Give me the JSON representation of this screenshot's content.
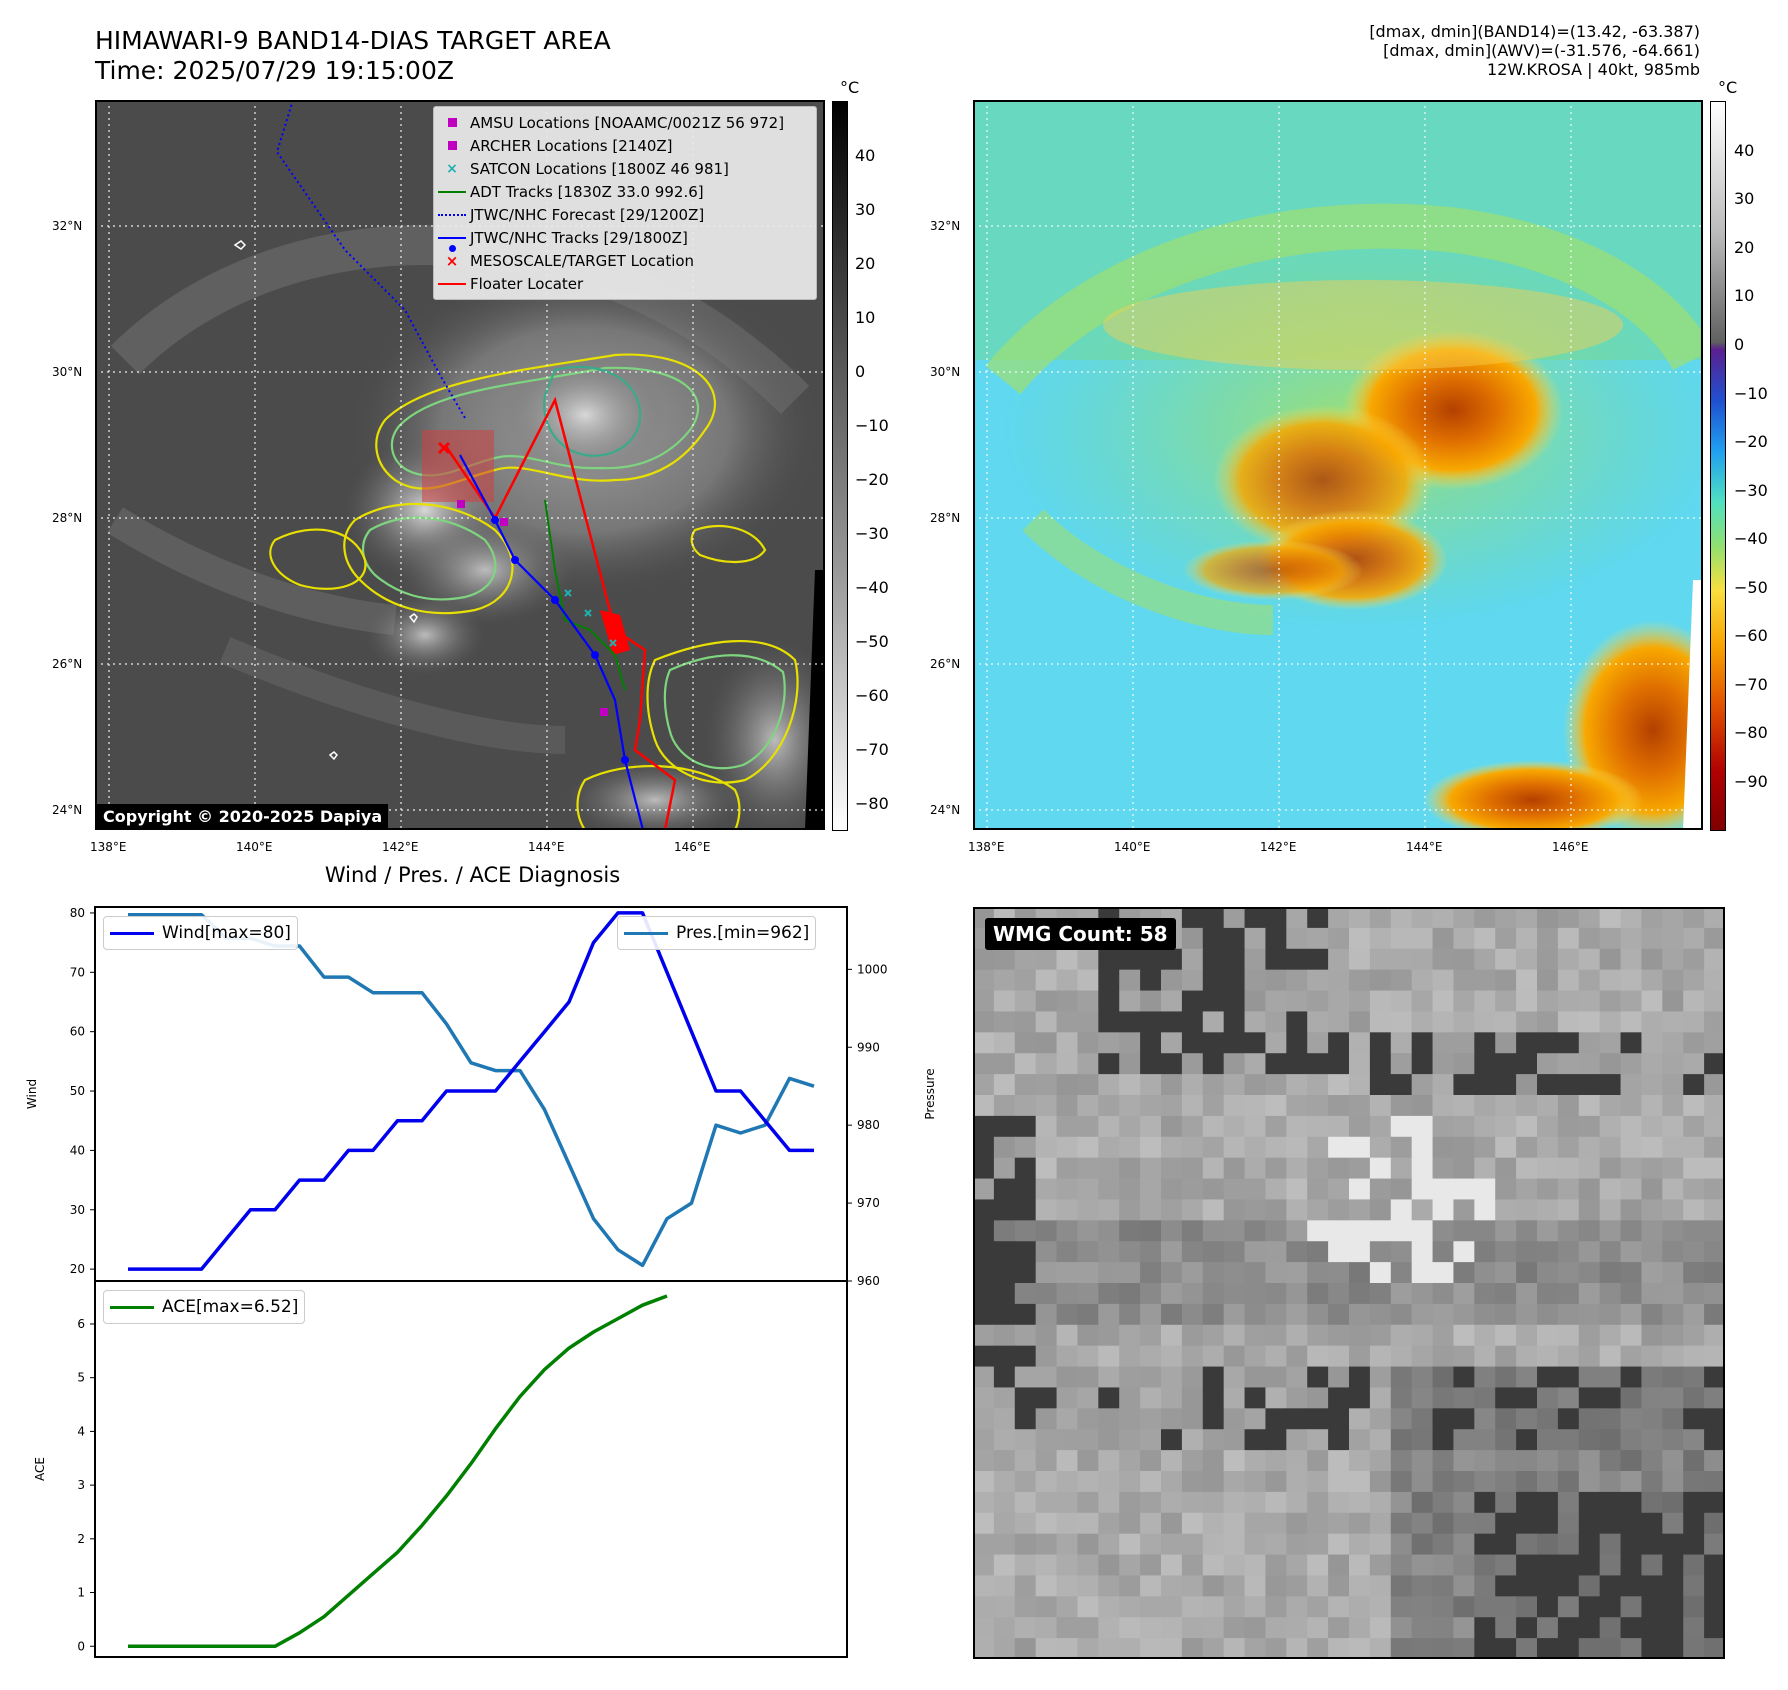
{
  "header": {
    "title_line1": "HIMAWARI-9 BAND14-DIAS TARGET AREA",
    "title_line2": "Time: 2025/07/29 19:15:00Z",
    "right_line1": "[dmax, dmin](BAND14)=(13.42, -63.387)",
    "right_line2": "[dmax, dmin](AWV)=(-31.576, -64.661)",
    "right_line3": "12W.KROSA | 40kt, 985mb"
  },
  "map": {
    "lon_ticks": [
      "138°E",
      "140°E",
      "142°E",
      "144°E",
      "146°E"
    ],
    "lat_ticks": [
      "32°N",
      "30°N",
      "28°N",
      "26°N",
      "24°N"
    ],
    "copyright": "Copyright © 2020-2025 Dapiya",
    "legend": [
      {
        "label": "AMSU Locations [NOAAMC/0021Z 56 972]",
        "symbol": "square",
        "color": "#c000c0"
      },
      {
        "label": "ARCHER Locations [2140Z]",
        "symbol": "square",
        "color": "#c000c0"
      },
      {
        "label": "SATCON Locations [1800Z 46 981]",
        "symbol": "x",
        "color": "#20b0b0"
      },
      {
        "label": "ADT Tracks [1830Z 33.0 992.6]",
        "symbol": "line",
        "color": "#008000"
      },
      {
        "label": "JTWC/NHC Forecast [29/1200Z]",
        "symbol": "dotted",
        "color": "#0000ff"
      },
      {
        "label": "JTWC/NHC Tracks [29/1800Z]",
        "symbol": "line-dot",
        "color": "#0000ff"
      },
      {
        "label": "MESOSCALE/TARGET Location",
        "symbol": "x",
        "color": "#ff0000"
      },
      {
        "label": "Floater Locater",
        "symbol": "line",
        "color": "#ff0000"
      }
    ]
  },
  "colorbar_gray": {
    "unit": "°C",
    "ticks": [
      "40",
      "30",
      "20",
      "10",
      "0",
      "−10",
      "−20",
      "−30",
      "−40",
      "−50",
      "−60",
      "−70",
      "−80"
    ]
  },
  "colorbar_color": {
    "unit": "°C",
    "ticks": [
      "40",
      "30",
      "20",
      "10",
      "0",
      "−10",
      "−20",
      "−30",
      "−40",
      "−50",
      "−60",
      "−70",
      "−80",
      "−90"
    ]
  },
  "diagnosis": {
    "title": "Wind / Pres. / ACE Diagnosis",
    "wind_legend": "Wind[max=80]",
    "pres_legend": "Pres.[min=962]",
    "ace_legend": "ACE[max=6.52]",
    "wind_ylabel": "Wind",
    "pres_ylabel": "Pressure",
    "ace_ylabel": "ACE",
    "wind_ticks": [
      "80",
      "70",
      "60",
      "50",
      "40",
      "30",
      "20"
    ],
    "pres_ticks": [
      "1000",
      "990",
      "980",
      "970",
      "960"
    ],
    "ace_ticks": [
      "6",
      "5",
      "4",
      "3",
      "2",
      "1",
      "0"
    ]
  },
  "wmg": {
    "label": "WMG Count: 58"
  },
  "colors": {
    "wind": "#0000ee",
    "pressure": "#1f77b4",
    "ace": "#008000",
    "track_red": "#ff0000",
    "track_blue": "#0000ff"
  },
  "chart_data": [
    {
      "type": "line",
      "title": "Wind / Pres. / ACE Diagnosis",
      "ylabel": "Wind",
      "ylim": [
        18,
        81
      ],
      "series": [
        {
          "name": "Wind[max=80]",
          "values": [
            20,
            20,
            20,
            20,
            25,
            30,
            30,
            35,
            35,
            40,
            40,
            45,
            45,
            50,
            50,
            50,
            55,
            60,
            65,
            75,
            80,
            80,
            70,
            60,
            50,
            50,
            45,
            40,
            40
          ]
        }
      ]
    },
    {
      "type": "line",
      "ylabel": "Pressure",
      "ylim": [
        960,
        1008
      ],
      "series": [
        {
          "name": "Pres.[min=962]",
          "values": [
            1007,
            1007,
            1007,
            1007,
            1004,
            1004,
            1003,
            1003,
            999,
            999,
            997,
            997,
            997,
            993,
            988,
            987,
            987,
            982,
            975,
            968,
            964,
            962,
            968,
            970,
            980,
            979,
            980,
            986,
            985
          ]
        }
      ]
    },
    {
      "type": "line",
      "ylabel": "ACE",
      "ylim": [
        -0.2,
        6.8
      ],
      "series": [
        {
          "name": "ACE[max=6.52]",
          "values": [
            0,
            0,
            0,
            0,
            0,
            0,
            0,
            0.25,
            0.55,
            0.95,
            1.35,
            1.75,
            2.25,
            2.8,
            3.4,
            4.05,
            4.65,
            5.15,
            5.55,
            5.85,
            6.1,
            6.35,
            6.52
          ]
        }
      ]
    }
  ]
}
